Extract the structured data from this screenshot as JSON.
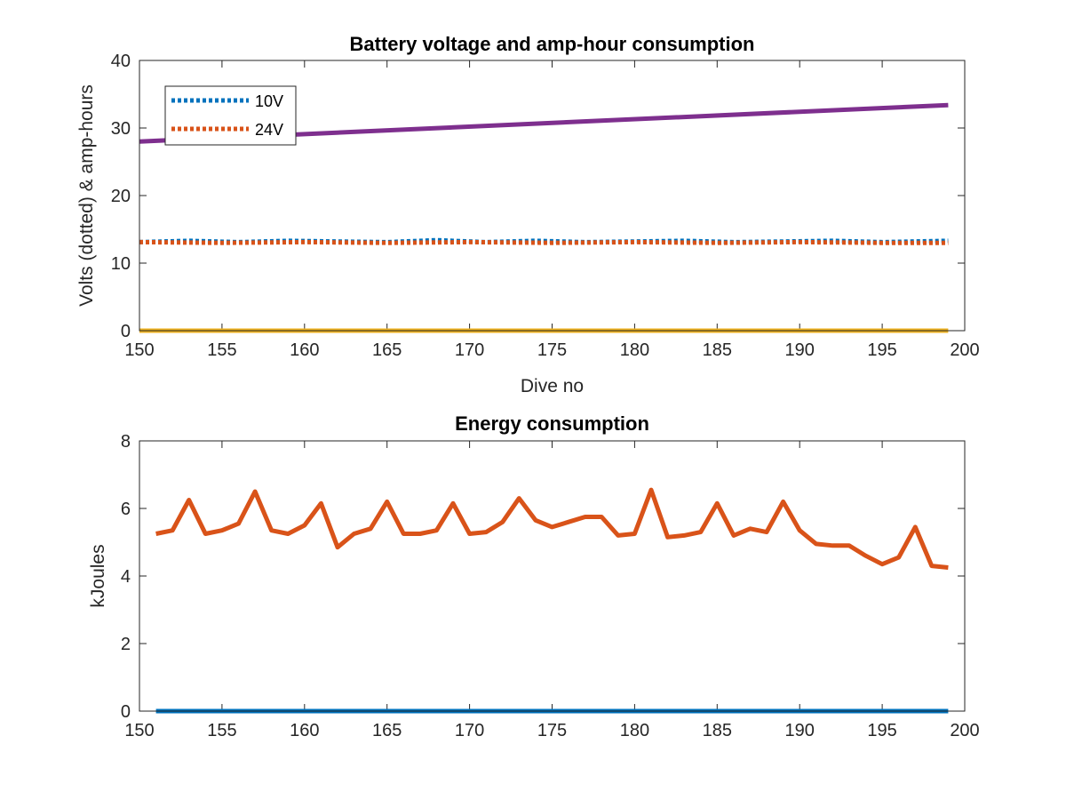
{
  "chart_data": [
    {
      "type": "line",
      "title": "Battery voltage and amp-hour consumption",
      "xlabel": "Dive no",
      "ylabel": "Volts (dotted) & amp-hours",
      "xlim": [
        150,
        200
      ],
      "ylim": [
        0,
        40
      ],
      "xticks": [
        "150",
        "155",
        "160",
        "165",
        "170",
        "175",
        "180",
        "185",
        "190",
        "195",
        "200"
      ],
      "yticks": [
        "0",
        "10",
        "20",
        "30",
        "40"
      ],
      "grid": false,
      "legend_position": "top-left",
      "series": [
        {
          "name": "10V",
          "style": "dotted",
          "color": "#0072BD",
          "in_legend": true,
          "x": [
            150,
            153,
            156,
            159,
            162,
            165,
            168,
            171,
            174,
            177,
            180,
            183,
            186,
            189,
            192,
            195,
            199
          ],
          "y": [
            13.1,
            13.3,
            13.1,
            13.3,
            13.2,
            13.1,
            13.4,
            13.1,
            13.3,
            13.1,
            13.2,
            13.3,
            13.1,
            13.2,
            13.3,
            13.1,
            13.3
          ]
        },
        {
          "name": "24V",
          "style": "dotted",
          "color": "#D95319",
          "in_legend": true,
          "x": [
            150,
            155,
            160,
            165,
            170,
            175,
            180,
            185,
            190,
            195,
            199
          ],
          "y": [
            13.1,
            13.0,
            13.1,
            13.0,
            13.1,
            13.0,
            13.1,
            13.0,
            13.1,
            13.0,
            13.0
          ]
        },
        {
          "style": "solid",
          "color": "#7E2F8E",
          "in_legend": false,
          "x": [
            150,
            199
          ],
          "y": [
            28.0,
            33.4
          ]
        },
        {
          "style": "solid",
          "color": "#EDB120",
          "in_legend": false,
          "x": [
            150,
            199
          ],
          "y": [
            0,
            0
          ]
        }
      ]
    },
    {
      "type": "line",
      "title": "Energy consumption",
      "xlabel": "",
      "ylabel": "kJoules",
      "xlim": [
        150,
        200
      ],
      "ylim": [
        0,
        8
      ],
      "xticks": [
        "150",
        "155",
        "160",
        "165",
        "170",
        "175",
        "180",
        "185",
        "190",
        "195",
        "200"
      ],
      "yticks": [
        "0",
        "2",
        "4",
        "6",
        "8"
      ],
      "grid": false,
      "series": [
        {
          "style": "solid",
          "color": "#D95319",
          "x": [
            151,
            152,
            153,
            154,
            155,
            156,
            157,
            158,
            159,
            160,
            161,
            162,
            163,
            164,
            165,
            166,
            167,
            168,
            169,
            170,
            171,
            172,
            173,
            174,
            175,
            176,
            177,
            178,
            179,
            180,
            181,
            182,
            183,
            184,
            185,
            186,
            187,
            188,
            189,
            190,
            191,
            192,
            193,
            194,
            195,
            196,
            197,
            198,
            199
          ],
          "y": [
            5.25,
            5.35,
            6.25,
            5.25,
            5.35,
            5.55,
            6.5,
            5.35,
            5.25,
            5.5,
            6.15,
            4.85,
            5.25,
            5.4,
            6.2,
            5.25,
            5.25,
            5.35,
            6.15,
            5.25,
            5.3,
            5.6,
            6.3,
            5.65,
            5.45,
            5.6,
            5.75,
            5.75,
            5.2,
            5.25,
            6.55,
            5.15,
            5.2,
            5.3,
            6.15,
            5.2,
            5.4,
            5.3,
            6.2,
            5.35,
            4.95,
            4.9,
            4.9,
            4.6,
            4.35,
            4.55,
            5.45,
            4.3,
            4.25
          ]
        },
        {
          "style": "solid",
          "color": "#0072BD",
          "x": [
            151,
            199
          ],
          "y": [
            0,
            0
          ]
        }
      ]
    }
  ]
}
